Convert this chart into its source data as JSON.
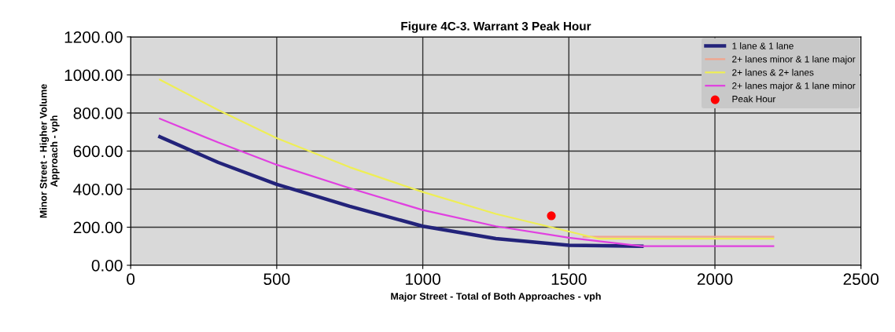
{
  "chart_data": {
    "type": "line",
    "title": "Figure 4C-3. Warrant 3 Peak Hour",
    "xlabel": "Major Street - Total of Both Approaches - vph",
    "ylabel": "Minor Street - Higher Volume\nApproach - vph",
    "series": [
      {
        "name": "1 lane & 1 lane",
        "color": "#23237a",
        "x": [
          100,
          300,
          500,
          750,
          1000,
          1250,
          1500,
          1750
        ],
        "values": [
          675,
          540,
          425,
          310,
          205,
          140,
          105,
          100
        ]
      },
      {
        "name": "2+ lanes minor & 1 lane major",
        "color": "#f2a48c",
        "x": [
          1550,
          2200
        ],
        "values": [
          150,
          150
        ]
      },
      {
        "name": "2+ lanes & 2+ lanes",
        "color": "#eeee55",
        "x": [
          100,
          300,
          500,
          750,
          1000,
          1250,
          1440,
          1600,
          2200
        ],
        "values": [
          975,
          815,
          668,
          515,
          385,
          270,
          200,
          140,
          140
        ]
      },
      {
        "name": "2+ lanes major & 1 lane minor",
        "color": "#e040e0",
        "x": [
          100,
          300,
          500,
          750,
          1000,
          1250,
          1500,
          1750,
          2200
        ],
        "values": [
          770,
          645,
          528,
          405,
          290,
          205,
          145,
          100,
          100
        ]
      },
      {
        "name": "Peak Hour",
        "type": "scatter",
        "color": "#ff0000",
        "marker": "circle",
        "x": [
          1440
        ],
        "values": [
          260
        ]
      }
    ],
    "xlim": [
      0,
      2500
    ],
    "xticks": [
      0,
      500,
      1000,
      1500,
      2000,
      2500
    ],
    "ylim": [
      0,
      1200
    ],
    "yticks": [
      {
        "value": 0,
        "label": "0.00"
      },
      {
        "value": 200,
        "label": "200.00"
      },
      {
        "value": 400,
        "label": "400.00"
      },
      {
        "value": 600,
        "label": "600.00"
      },
      {
        "value": 800,
        "label": "800.00"
      },
      {
        "value": 1000,
        "label": "1000.00"
      },
      {
        "value": 1200,
        "label": "1200.00"
      }
    ],
    "grid": true,
    "legend": "top right"
  }
}
